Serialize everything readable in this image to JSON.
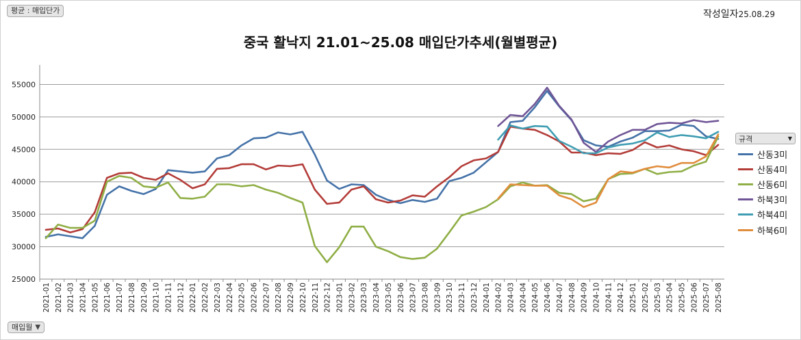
{
  "filter_label": "평균 : 매입단가",
  "field_label": "매입월",
  "date_stamp": {
    "label": "작성일자",
    "date": "25.08.29"
  },
  "legend_title": "규격",
  "chart_data": {
    "type": "line",
    "title": "중국 활낙지 21.01~25.08 매입단가추세(월별평균)",
    "xlabel": "",
    "ylabel": "",
    "ylim": [
      25000,
      58000
    ],
    "yticks": [
      25000,
      30000,
      35000,
      40000,
      45000,
      50000,
      55000
    ],
    "grid": true,
    "legend_position": "right",
    "categories": [
      "2021-01",
      "2021-02",
      "2021-03",
      "2021-04",
      "2021-05",
      "2021-06",
      "2021-07",
      "2021-08",
      "2021-09",
      "2021-10",
      "2021-11",
      "2021-12",
      "2022-01",
      "2022-02",
      "2022-03",
      "2022-04",
      "2022-05",
      "2022-06",
      "2022-07",
      "2022-08",
      "2022-09",
      "2022-10",
      "2022-11",
      "2022-12",
      "2023-01",
      "2023-02",
      "2023-03",
      "2023-04",
      "2023-05",
      "2023-06",
      "2023-07",
      "2023-08",
      "2023-09",
      "2023-10",
      "2023-11",
      "2023-12",
      "2024-01",
      "2024-02",
      "2024-03",
      "2024-04",
      "2024-05",
      "2024-06",
      "2024-07",
      "2024-08",
      "2024-09",
      "2024-10",
      "2024-11",
      "2024-12",
      "2025-01",
      "2025-02",
      "2025-03",
      "2025-04",
      "2025-05",
      "2025-06",
      "2025-07",
      "2025-08"
    ],
    "series": [
      {
        "name": "산동3미",
        "color": "#4472a8",
        "values": [
          31500,
          31900,
          31600,
          31300,
          33200,
          38000,
          39300,
          38600,
          38100,
          38900,
          41800,
          41600,
          41400,
          41600,
          43600,
          44100,
          45600,
          46700,
          46800,
          47600,
          47300,
          47700,
          44200,
          40200,
          38900,
          39600,
          39500,
          38000,
          37200,
          36700,
          37200,
          36900,
          37400,
          40100,
          40600,
          41400,
          43000,
          44600,
          49200,
          49400,
          51500,
          54000,
          51600,
          49500,
          46400,
          45600,
          45400,
          46200,
          46800,
          47800,
          47800,
          47900,
          48800,
          48600,
          47000,
          46600
        ]
      },
      {
        "name": "산동4미",
        "color": "#b33c38",
        "values": [
          32600,
          32800,
          32200,
          32700,
          35300,
          40600,
          41300,
          41400,
          40600,
          40300,
          41300,
          40300,
          39000,
          39600,
          42000,
          42100,
          42700,
          42700,
          41900,
          42500,
          42400,
          42700,
          38800,
          36600,
          36800,
          38800,
          39300,
          37300,
          36800,
          37100,
          37900,
          37700,
          39300,
          40700,
          42400,
          43300,
          43600,
          44600,
          48500,
          48200,
          48000,
          47200,
          46200,
          44500,
          44500,
          44100,
          44400,
          44300,
          44900,
          46100,
          45300,
          45600,
          45000,
          44700,
          44100,
          45700
        ]
      },
      {
        "name": "산동6미",
        "color": "#8fae45",
        "values": [
          31300,
          33400,
          32900,
          32900,
          34000,
          40000,
          40900,
          40600,
          39300,
          39100,
          39900,
          37500,
          37400,
          37700,
          39600,
          39600,
          39300,
          39500,
          38800,
          38300,
          37500,
          36800,
          30100,
          27600,
          29900,
          33100,
          33100,
          30000,
          29300,
          28400,
          28100,
          28300,
          29700,
          32200,
          34800,
          35400,
          36100,
          37300,
          39300,
          39900,
          39400,
          39500,
          38300,
          38100,
          37000,
          37400,
          40400,
          41200,
          41300,
          42000,
          41200,
          41500,
          41600,
          42500,
          43100,
          47000
        ]
      },
      {
        "name": "하북3미",
        "color": "#6f5596",
        "values": [
          null,
          null,
          null,
          null,
          null,
          null,
          null,
          null,
          null,
          null,
          null,
          null,
          null,
          null,
          null,
          null,
          null,
          null,
          null,
          null,
          null,
          null,
          null,
          null,
          null,
          null,
          null,
          null,
          null,
          null,
          null,
          null,
          null,
          null,
          null,
          null,
          null,
          48600,
          50300,
          50100,
          52000,
          54500,
          51700,
          49600,
          46000,
          44600,
          46200,
          47200,
          48000,
          48000,
          48900,
          49100,
          49000,
          49500,
          49200,
          49400
        ]
      },
      {
        "name": "하북4미",
        "color": "#3f9db2",
        "values": [
          null,
          null,
          null,
          null,
          null,
          null,
          null,
          null,
          null,
          null,
          null,
          null,
          null,
          null,
          null,
          null,
          null,
          null,
          null,
          null,
          null,
          null,
          null,
          null,
          null,
          null,
          null,
          null,
          null,
          null,
          null,
          null,
          null,
          null,
          null,
          null,
          null,
          46500,
          48700,
          48200,
          48600,
          48500,
          46300,
          45400,
          44400,
          44400,
          45300,
          45700,
          45900,
          46400,
          47600,
          46900,
          47200,
          47000,
          46700,
          47700
        ]
      },
      {
        "name": "하북6미",
        "color": "#e08d3c",
        "values": [
          null,
          null,
          null,
          null,
          null,
          null,
          null,
          null,
          null,
          null,
          null,
          null,
          null,
          null,
          null,
          null,
          null,
          null,
          null,
          null,
          null,
          null,
          null,
          null,
          null,
          null,
          null,
          null,
          null,
          null,
          null,
          null,
          null,
          null,
          null,
          null,
          null,
          37400,
          39600,
          39500,
          39400,
          39400,
          37900,
          37300,
          36100,
          36800,
          40400,
          41600,
          41400,
          42000,
          42400,
          42200,
          42900,
          42900,
          43900,
          47300
        ]
      }
    ]
  }
}
